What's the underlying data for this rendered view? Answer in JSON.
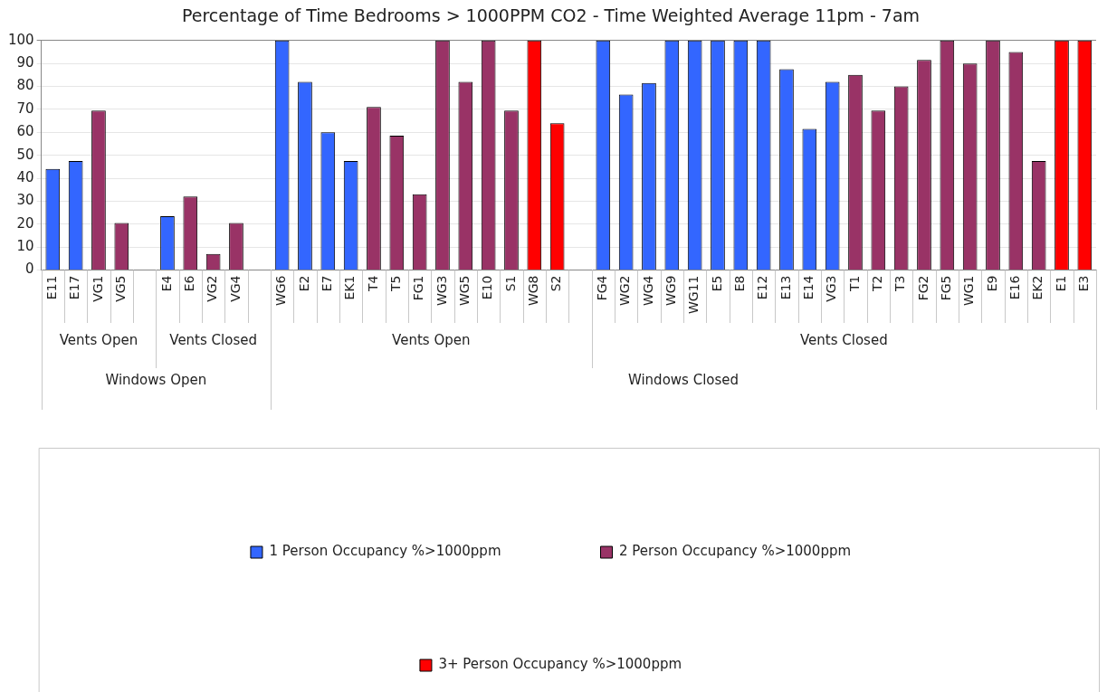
{
  "chart_data": {
    "type": "bar",
    "title": "Percentage of Time Bedrooms > 1000PPM CO2 - Time Weighted Average 11pm - 7am",
    "categories": [
      "E11",
      "E17",
      "VG1",
      "VG5",
      null,
      "E4",
      "E6",
      "VG2",
      "VG4",
      null,
      "WG6",
      "E2",
      "E7",
      "EK1",
      "T4",
      "T5",
      "FG1",
      "WG3",
      "WG5",
      "E10",
      "S1",
      "WG8",
      "S2",
      null,
      "FG4",
      "WG2",
      "WG4",
      "WG9",
      "WG11",
      "E5",
      "E8",
      "E12",
      "E13",
      "E14",
      "VG3",
      "T1",
      "T2",
      "T3",
      "FG2",
      "FG5",
      "WG1",
      "E9",
      "E16",
      "EK2",
      "E1",
      "E3"
    ],
    "series": [
      {
        "name": "1 Person Occupancy %>1000ppm",
        "color": "#3366ff",
        "values": [
          44,
          47.5,
          null,
          null,
          null,
          23.5,
          null,
          null,
          null,
          null,
          100,
          82,
          60,
          47.5,
          null,
          null,
          null,
          null,
          null,
          null,
          null,
          null,
          null,
          null,
          100,
          76.5,
          81.5,
          100,
          100,
          100,
          100,
          100,
          87.5,
          61.5,
          82,
          null,
          null,
          null,
          null,
          null,
          null,
          null,
          null,
          null,
          null,
          null
        ]
      },
      {
        "name": "2 Person Occupancy %>1000ppm",
        "color": "#993366",
        "values": [
          null,
          null,
          69.5,
          20.5,
          null,
          null,
          32,
          7,
          20.5,
          null,
          null,
          null,
          null,
          null,
          71,
          58.5,
          33,
          100,
          82,
          100,
          69.5,
          null,
          null,
          null,
          null,
          null,
          null,
          null,
          null,
          null,
          null,
          null,
          null,
          null,
          null,
          85,
          69.5,
          80,
          91.5,
          100,
          90,
          100,
          95,
          47.5,
          null,
          null
        ]
      },
      {
        "name": "3+ Person Occupancy %>1000ppm",
        "color": "#ff0000",
        "values": [
          null,
          null,
          null,
          null,
          null,
          null,
          null,
          null,
          null,
          null,
          null,
          null,
          null,
          null,
          null,
          null,
          null,
          null,
          null,
          null,
          null,
          100,
          64,
          null,
          null,
          null,
          null,
          null,
          null,
          null,
          null,
          null,
          null,
          null,
          null,
          null,
          null,
          null,
          null,
          null,
          null,
          null,
          null,
          null,
          100,
          100
        ]
      }
    ],
    "ylim": [
      0,
      100
    ],
    "yticks": [
      0,
      10,
      20,
      30,
      40,
      50,
      60,
      70,
      80,
      90,
      100
    ],
    "grid": "y",
    "legend": "bottom",
    "annotations": [
      "Vents Open",
      "Vents Closed",
      "Vents Open",
      "Vents Closed",
      "Windows Open",
      "Windows Closed"
    ]
  }
}
